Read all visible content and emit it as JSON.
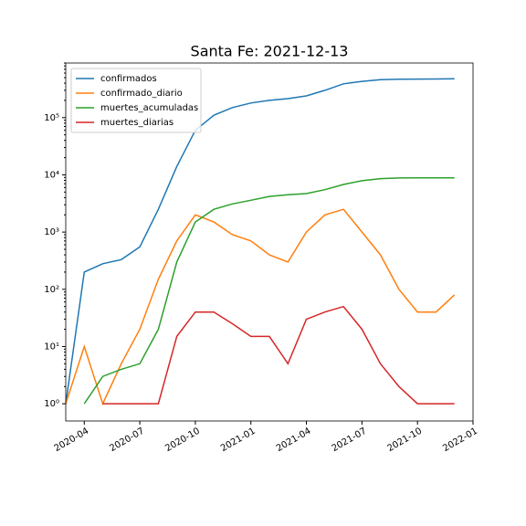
{
  "chart_data": {
    "type": "line",
    "title": "Santa Fe: 2021-12-13",
    "log_scale": "y",
    "legend": "upper left",
    "x": [
      "2020-03",
      "2020-04",
      "2020-05",
      "2020-06",
      "2020-07",
      "2020-08",
      "2020-09",
      "2020-10",
      "2020-11",
      "2020-12",
      "2021-01",
      "2021-02",
      "2021-03",
      "2021-04",
      "2021-05",
      "2021-06",
      "2021-07",
      "2021-08",
      "2021-09",
      "2021-10",
      "2021-11",
      "2021-12"
    ],
    "series": [
      {
        "name": "confirmados",
        "color": "#1f77b4",
        "values": [
          1,
          200,
          280,
          330,
          550,
          2500,
          14000,
          60000,
          110000,
          150000,
          180000,
          200000,
          215000,
          240000,
          300000,
          390000,
          430000,
          460000,
          470000,
          472000,
          474000,
          476000
        ]
      },
      {
        "name": "confirmado_diario",
        "color": "#ff7f0e",
        "values": [
          1,
          10,
          1,
          5,
          20,
          150,
          700,
          2000,
          1500,
          900,
          700,
          400,
          300,
          1000,
          2000,
          2500,
          1000,
          400,
          100,
          40,
          40,
          80
        ]
      },
      {
        "name": "muertes_acumuladas",
        "color": "#2ca02c",
        "values": [
          null,
          1,
          3,
          4,
          5,
          20,
          300,
          1500,
          2500,
          3100,
          3600,
          4200,
          4500,
          4700,
          5500,
          6800,
          7900,
          8600,
          8800,
          8850,
          8870,
          8880
        ]
      },
      {
        "name": "muertes_diarias",
        "color": "#d62728",
        "values": [
          null,
          null,
          1,
          1,
          1,
          1,
          15,
          40,
          40,
          25,
          15,
          15,
          5,
          30,
          40,
          50,
          20,
          5,
          2,
          1,
          1,
          1
        ]
      }
    ],
    "xlim": [
      "2020-03",
      "2022-01"
    ],
    "xticks": [
      "2020-04",
      "2020-07",
      "2020-10",
      "2021-01",
      "2021-04",
      "2021-07",
      "2021-10",
      "2022-01"
    ],
    "ylim": [
      0.5,
      900000
    ],
    "yticks": [
      {
        "value": 1,
        "label": "10⁰"
      },
      {
        "value": 10,
        "label": "10¹"
      },
      {
        "value": 100,
        "label": "10²"
      },
      {
        "value": 1000,
        "label": "10³"
      },
      {
        "value": 10000,
        "label": "10⁴"
      },
      {
        "value": 100000,
        "label": "10⁵"
      }
    ]
  }
}
